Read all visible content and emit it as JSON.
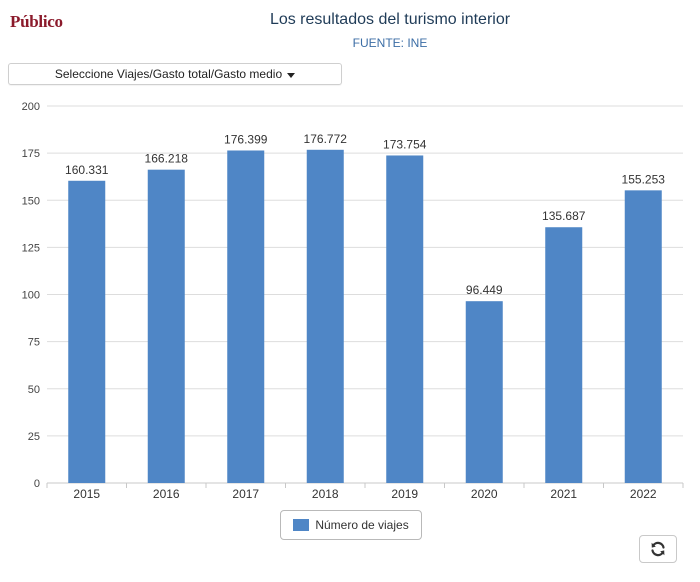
{
  "header": {
    "logo": "Público",
    "title": "Los resultados del turismo interior",
    "subtitle": "FUENTE: INE"
  },
  "selector": {
    "label": "Seleccione Viajes/Gasto total/Gasto medio"
  },
  "legend": {
    "label": "Número de viajes"
  },
  "colors": {
    "bar": "#4f86c6",
    "logo": "#8b1a2b",
    "grid": "#dddddd"
  },
  "icons": {
    "dropdown": "caret-down-icon",
    "refresh": "refresh-icon"
  },
  "chart_data": {
    "type": "bar",
    "categories": [
      "2015",
      "2016",
      "2017",
      "2018",
      "2019",
      "2020",
      "2021",
      "2022"
    ],
    "values": [
      160.331,
      166.218,
      176.399,
      176.772,
      173.754,
      96.449,
      135.687,
      155.253
    ],
    "value_labels": [
      "160.331",
      "166.218",
      "176.399",
      "176.772",
      "173.754",
      "96.449",
      "135.687",
      "155.253"
    ],
    "ylim": [
      0,
      200
    ],
    "yticks": [
      0,
      25,
      50,
      75,
      100,
      125,
      150,
      175,
      200
    ],
    "series": [
      {
        "name": "Número de viajes"
      }
    ],
    "grid": true,
    "legend_position": "bottom-center"
  }
}
